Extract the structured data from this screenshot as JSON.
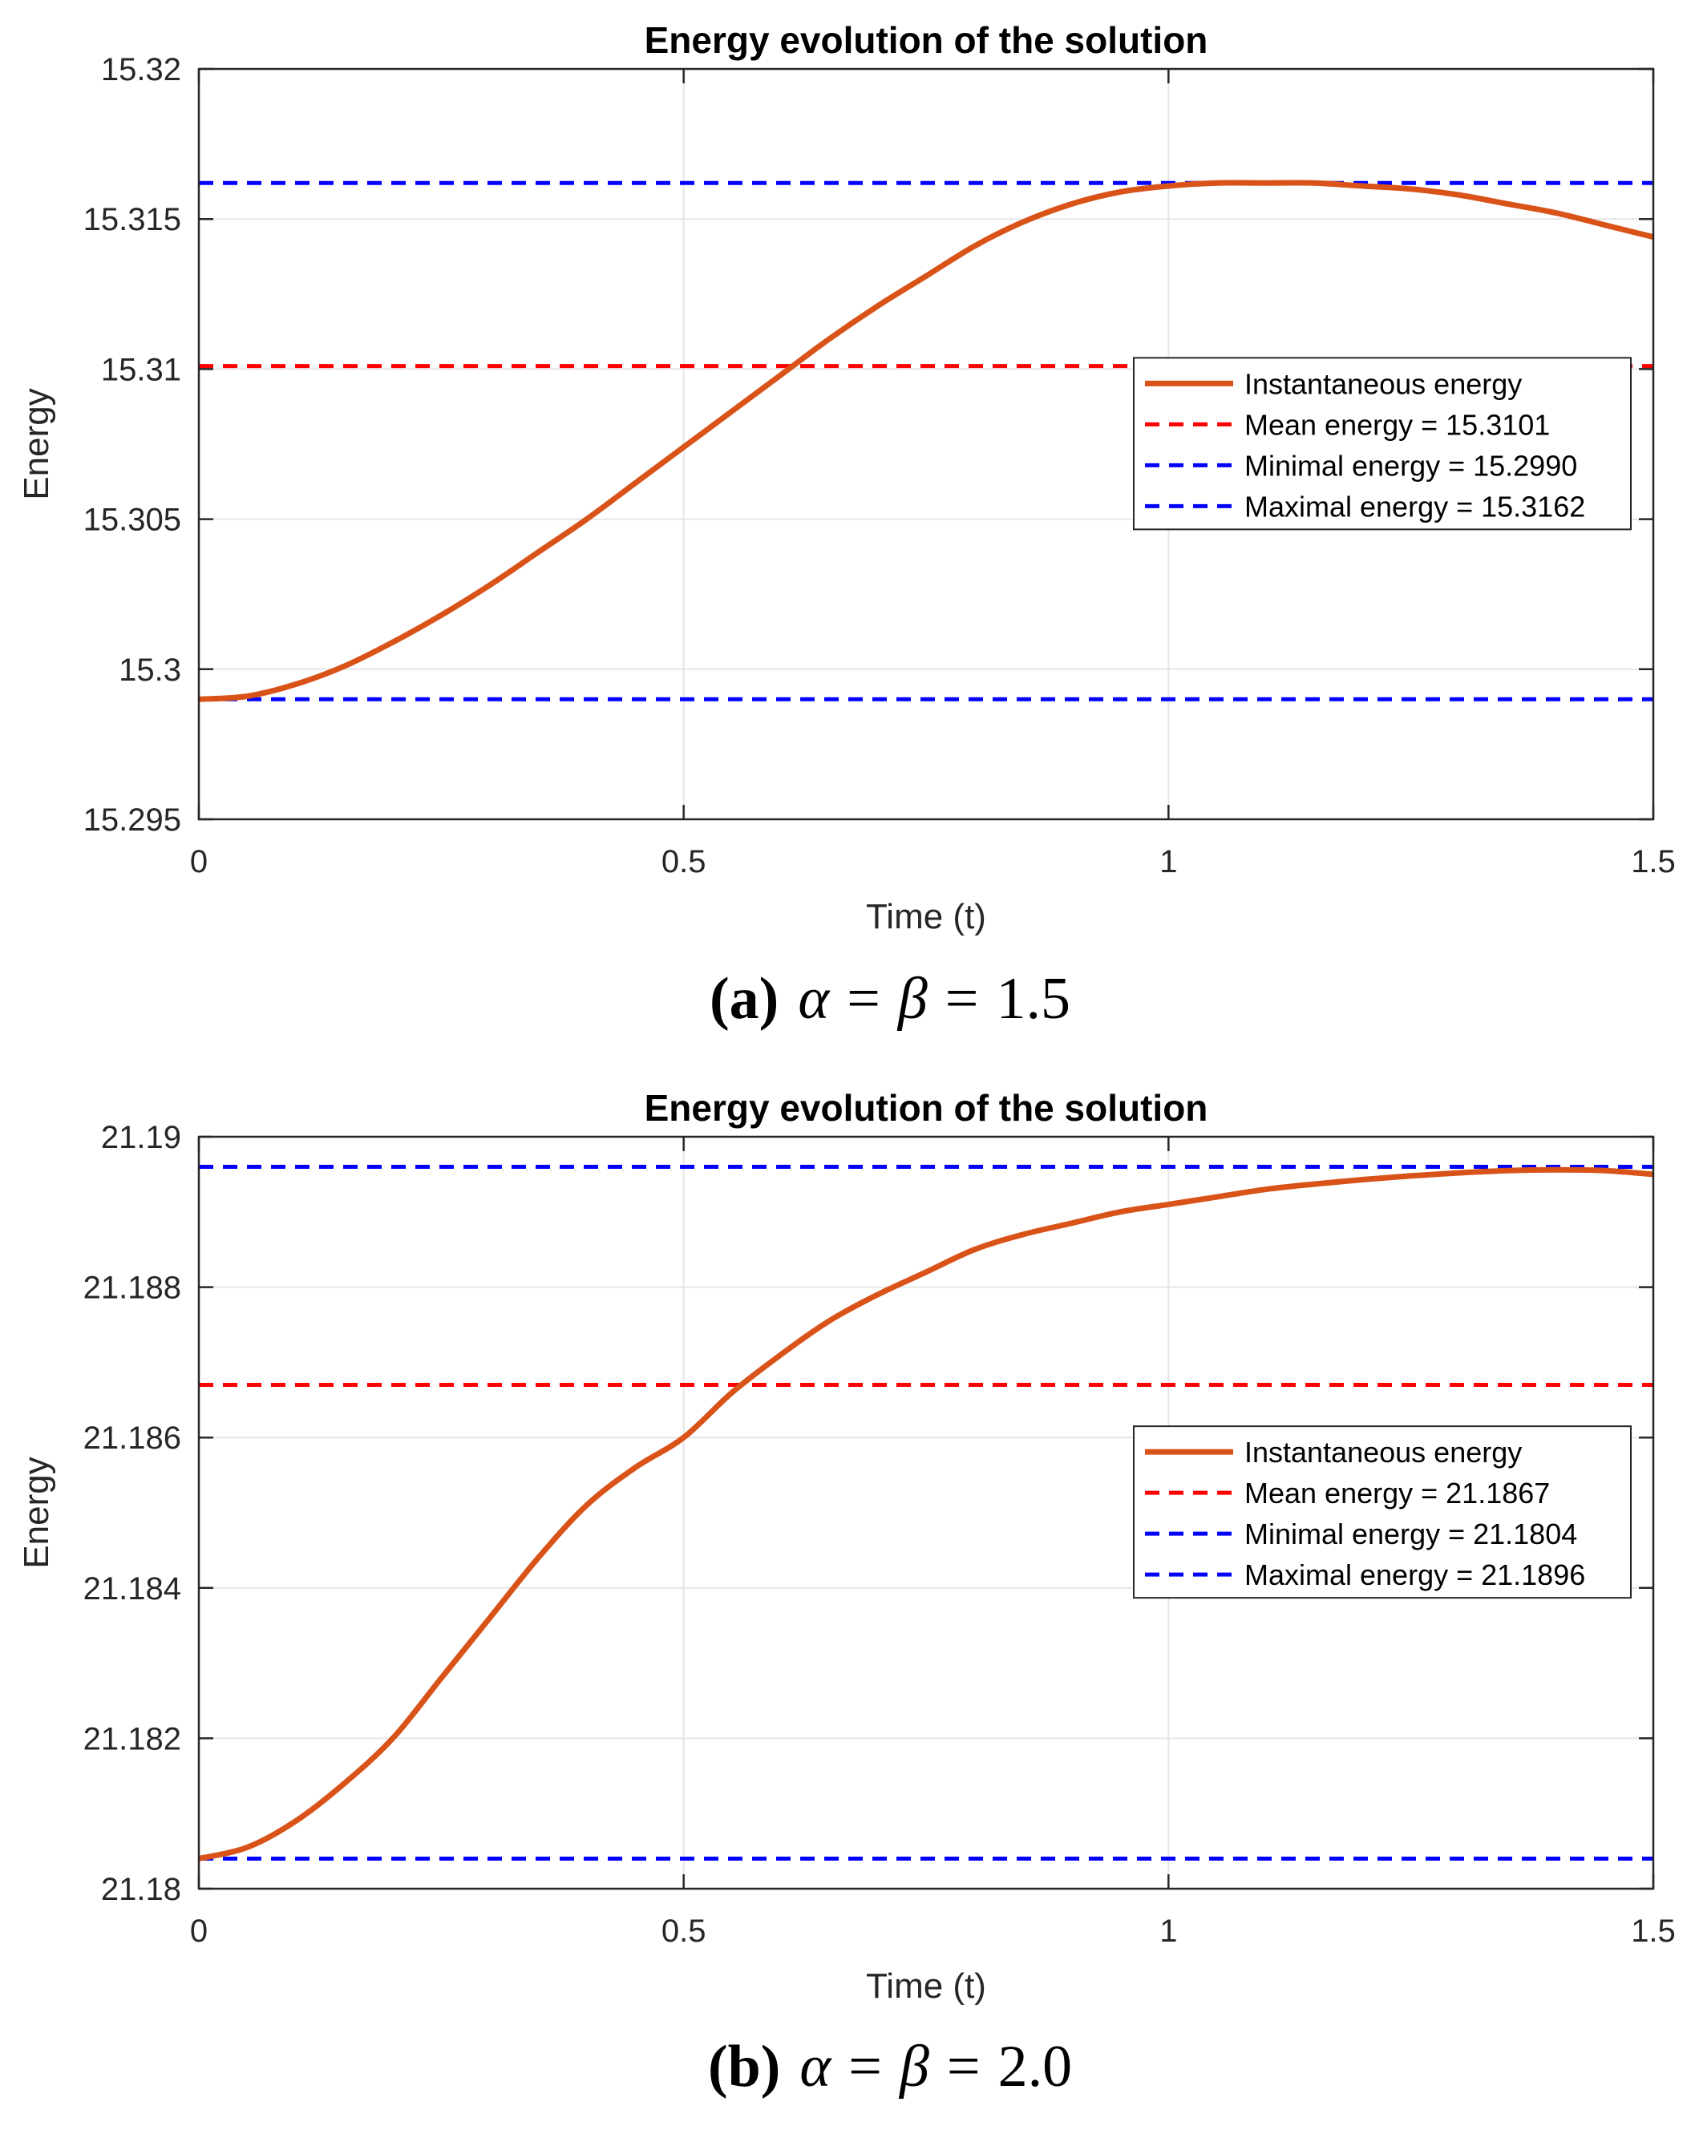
{
  "chart_data": [
    {
      "type": "line",
      "panel_label": "(a)",
      "caption": {
        "label": "(a)",
        "expression": "α = β = 1.5",
        "alpha_symbol": "α",
        "beta_symbol": "β",
        "value": "1.5"
      },
      "title": "Energy evolution of the solution",
      "xlabel": "Time (t)",
      "ylabel": "Energy",
      "xlim": [
        0,
        1.5
      ],
      "ylim": [
        15.295,
        15.32
      ],
      "xticks": [
        0,
        0.5,
        1,
        1.5
      ],
      "xtick_labels": [
        "0",
        "0.5",
        "1",
        "1.5"
      ],
      "yticks": [
        15.295,
        15.3,
        15.305,
        15.31,
        15.315,
        15.32
      ],
      "ytick_labels": [
        "15.295",
        "15.3",
        "15.305",
        "15.31",
        "15.315",
        "15.32"
      ],
      "grid": true,
      "legend_position": "middle-right",
      "legend": [
        "Instantaneous energy",
        "Mean energy = 15.3101",
        "Minimal energy = 15.2990",
        "Maximal energy = 15.3162"
      ],
      "series": [
        {
          "name": "Instantaneous energy",
          "color": "#D95319",
          "style": "solid",
          "x": [
            0,
            0.05,
            0.1,
            0.15,
            0.2,
            0.25,
            0.3,
            0.35,
            0.4,
            0.45,
            0.5,
            0.55,
            0.6,
            0.65,
            0.7,
            0.75,
            0.8,
            0.85,
            0.9,
            0.95,
            1.0,
            1.05,
            1.1,
            1.15,
            1.2,
            1.25,
            1.3,
            1.35,
            1.4,
            1.45,
            1.5
          ],
          "values": [
            15.299,
            15.2991,
            15.2995,
            15.3001,
            15.3009,
            15.3018,
            15.3028,
            15.3039,
            15.305,
            15.3062,
            15.3074,
            15.3086,
            15.3098,
            15.311,
            15.3121,
            15.3131,
            15.3141,
            15.3149,
            15.3155,
            15.3159,
            15.3161,
            15.3162,
            15.3162,
            15.3162,
            15.3161,
            15.316,
            15.3158,
            15.3155,
            15.3152,
            15.3148,
            15.3144
          ]
        }
      ],
      "hlines": [
        {
          "name": "Mean energy",
          "value": 15.3101,
          "color": "#FF0000",
          "style": "dashed"
        },
        {
          "name": "Minimal energy",
          "value": 15.299,
          "color": "#0000FF",
          "style": "dashed"
        },
        {
          "name": "Maximal energy",
          "value": 15.3162,
          "color": "#0000FF",
          "style": "dashed"
        }
      ]
    },
    {
      "type": "line",
      "panel_label": "(b)",
      "caption": {
        "label": "(b)",
        "expression": "α = β = 2.0",
        "alpha_symbol": "α",
        "beta_symbol": "β",
        "value": "2.0"
      },
      "title": "Energy evolution of the solution",
      "xlabel": "Time (t)",
      "ylabel": "Energy",
      "xlim": [
        0,
        1.5
      ],
      "ylim": [
        21.18,
        21.19
      ],
      "xticks": [
        0,
        0.5,
        1,
        1.5
      ],
      "xtick_labels": [
        "0",
        "0.5",
        "1",
        "1.5"
      ],
      "yticks": [
        21.18,
        21.182,
        21.184,
        21.186,
        21.188,
        21.19
      ],
      "ytick_labels": [
        "21.18",
        "21.182",
        "21.184",
        "21.186",
        "21.188",
        "21.19"
      ],
      "grid": true,
      "legend_position": "middle-right",
      "legend": [
        "Instantaneous energy",
        "Mean energy = 21.1867",
        "Minimal energy = 21.1804",
        "Maximal energy = 21.1896"
      ],
      "series": [
        {
          "name": "Instantaneous energy",
          "color": "#D95319",
          "style": "solid",
          "x": [
            0,
            0.05,
            0.1,
            0.15,
            0.2,
            0.25,
            0.3,
            0.35,
            0.4,
            0.45,
            0.5,
            0.55,
            0.6,
            0.65,
            0.7,
            0.75,
            0.8,
            0.85,
            0.9,
            0.95,
            1.0,
            1.05,
            1.1,
            1.15,
            1.2,
            1.25,
            1.3,
            1.35,
            1.4,
            1.45,
            1.5
          ],
          "values": [
            21.1804,
            21.18055,
            21.1809,
            21.1814,
            21.182,
            21.1828,
            21.1836,
            21.1844,
            21.1851,
            21.1856,
            21.186,
            21.1866,
            21.1871,
            21.18755,
            21.1879,
            21.1882,
            21.1885,
            21.1887,
            21.18885,
            21.189,
            21.1891,
            21.1892,
            21.1893,
            21.18937,
            21.18943,
            21.18948,
            21.18952,
            21.18955,
            21.18956,
            21.18955,
            21.1895
          ]
        }
      ],
      "hlines": [
        {
          "name": "Mean energy",
          "value": 21.1867,
          "color": "#FF0000",
          "style": "dashed"
        },
        {
          "name": "Minimal energy",
          "value": 21.1804,
          "color": "#0000FF",
          "style": "dashed"
        },
        {
          "name": "Maximal energy",
          "value": 21.1896,
          "color": "#0000FF",
          "style": "dashed"
        }
      ]
    }
  ]
}
